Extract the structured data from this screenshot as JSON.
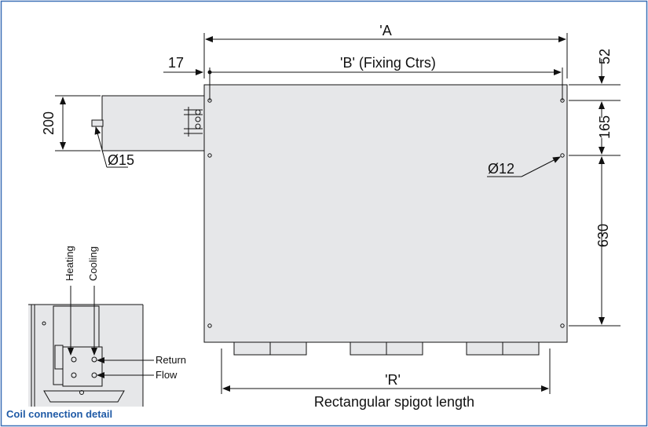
{
  "colors": {
    "border": "#3b6fb6",
    "panel": "#e6e7e9",
    "line": "#111111",
    "caption": "#1f5aa6"
  },
  "dimensions": {
    "a_label": "'A",
    "b_label": "'B' (Fixing Ctrs)",
    "left_offset": "17",
    "top_52": "52",
    "right_165": "165",
    "right_630": "630",
    "coil_height": "200",
    "pipe_dia": "Ø15",
    "hole_dia": "Ø12",
    "r_label": "'R'",
    "spigot_label": "Rectangular spigot length"
  },
  "detail": {
    "heating": "Heating",
    "cooling": "Cooling",
    "return": "Return",
    "flow": "Flow",
    "caption": "Coil connection detail"
  }
}
